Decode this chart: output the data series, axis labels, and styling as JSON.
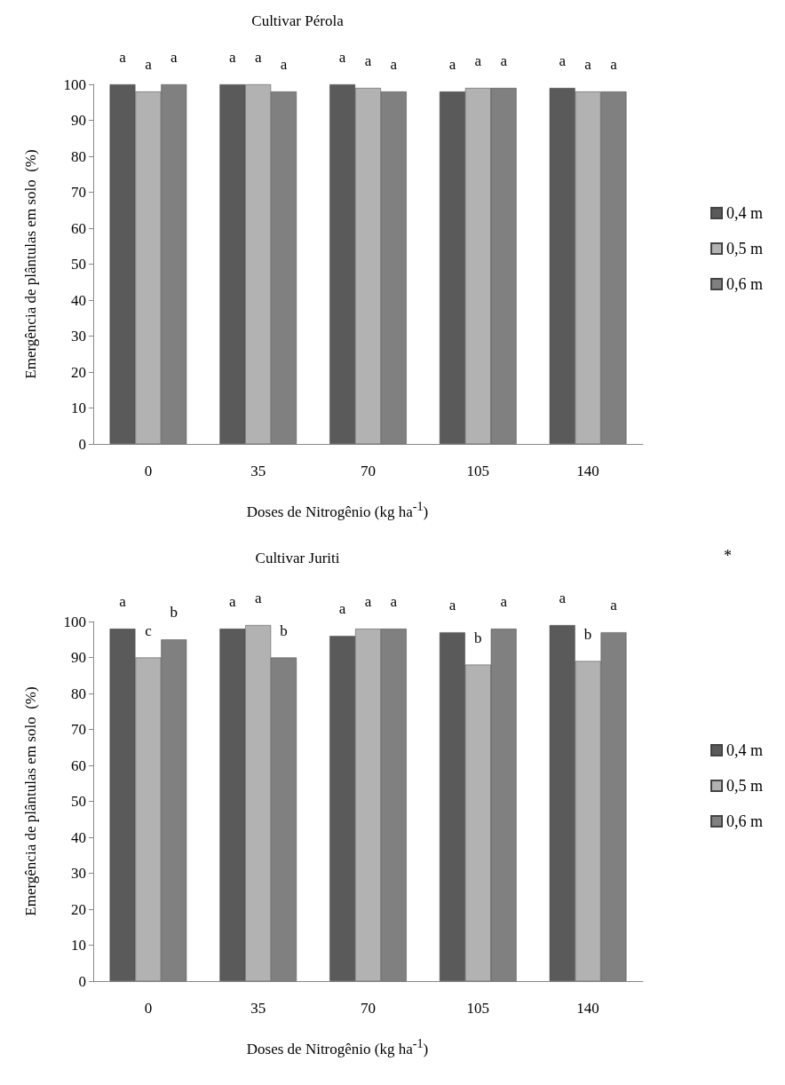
{
  "chart_data": [
    {
      "type": "bar",
      "title": "Cultivar Pérola",
      "xlabel": "Doses de Nitrogênio  (kg ha$^{-1}$)",
      "ylabel": "Emergência de plântulas em solo  (%)",
      "categories": [
        "0",
        "35",
        "70",
        "105",
        "140"
      ],
      "series": [
        {
          "name": "0,4 m",
          "color": "#5a5a5a",
          "values": [
            100,
            100,
            100,
            98,
            99
          ],
          "value_labels": [
            "a",
            "a",
            "a",
            "a",
            "a"
          ]
        },
        {
          "name": "0,5 m",
          "color": "#b2b2b2",
          "values": [
            98,
            100,
            99,
            99,
            98
          ],
          "value_labels": [
            "a",
            "a",
            "a",
            "a",
            "a"
          ]
        },
        {
          "name": "0,6 m",
          "color": "#808080",
          "values": [
            100,
            98,
            98,
            99,
            98
          ],
          "value_labels": [
            "a",
            "a",
            "a",
            "a",
            "a"
          ]
        }
      ],
      "ylim": [
        0,
        100
      ],
      "yticks": [
        0,
        10,
        20,
        30,
        40,
        50,
        60,
        70,
        80,
        90,
        100
      ],
      "grid": false,
      "legend": "right"
    },
    {
      "type": "bar",
      "title": "Cultivar Juriti",
      "xlabel": "Doses de Nitrogênio  (kg ha$^{-1}$)",
      "ylabel": "Emergência de plântulas em solo  (%)",
      "categories": [
        "0",
        "35",
        "70",
        "105",
        "140"
      ],
      "series": [
        {
          "name": "0,4 m",
          "color": "#5a5a5a",
          "values": [
            98,
            98,
            96,
            97,
            99
          ],
          "value_labels": [
            "a",
            "a",
            "a",
            "a",
            "a"
          ]
        },
        {
          "name": "0,5 m",
          "color": "#b2b2b2",
          "values": [
            90,
            99,
            98,
            88,
            89
          ],
          "value_labels": [
            "c",
            "a",
            "a",
            "b",
            "b"
          ]
        },
        {
          "name": "0,6 m",
          "color": "#808080",
          "values": [
            95,
            90,
            98,
            98,
            97
          ],
          "value_labels": [
            "b",
            "b",
            "a",
            "a",
            "a"
          ]
        }
      ],
      "ylim": [
        0,
        100
      ],
      "yticks": [
        0,
        10,
        20,
        30,
        40,
        50,
        60,
        70,
        80,
        90,
        100
      ],
      "grid": false,
      "legend": "right",
      "annotations": [
        "*"
      ]
    }
  ]
}
